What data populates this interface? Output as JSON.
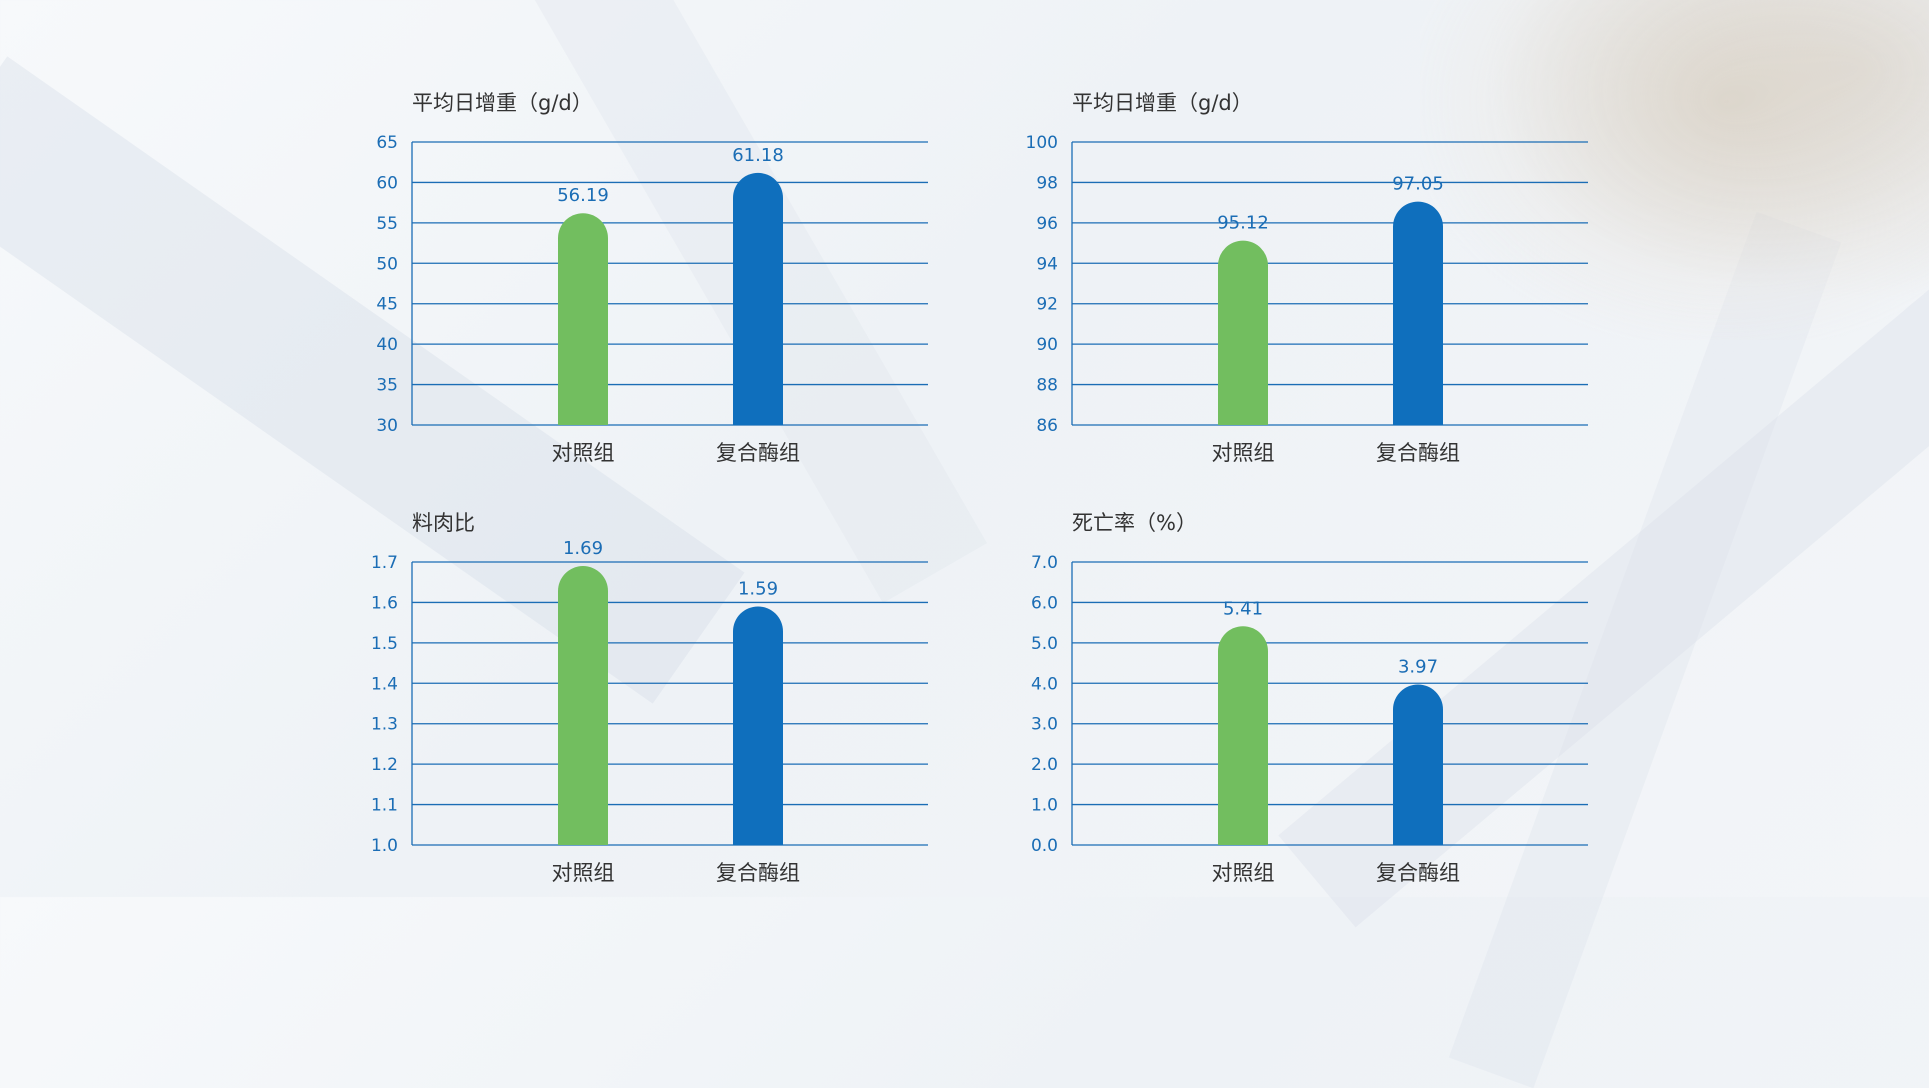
{
  "colors": {
    "control": "#72be5f",
    "enzyme": "#0f6fbd",
    "grid": "#1b6db5",
    "tick": "#1b6db5"
  },
  "chart_data": [
    {
      "type": "bar",
      "title": "平均日增重（g/d）",
      "categories": [
        "对照组",
        "复合酶组"
      ],
      "values": [
        56.19,
        61.18
      ],
      "value_labels": [
        "56.19",
        "61.18"
      ],
      "ylim": [
        30,
        65
      ],
      "yticks": [
        "30",
        "35",
        "40",
        "45",
        "50",
        "55",
        "60",
        "65"
      ],
      "grid": true
    },
    {
      "type": "bar",
      "title": "平均日增重（g/d）",
      "categories": [
        "对照组",
        "复合酶组"
      ],
      "values": [
        95.12,
        97.05
      ],
      "value_labels": [
        "95.12",
        "97.05"
      ],
      "ylim": [
        86,
        100
      ],
      "yticks": [
        "86",
        "88",
        "90",
        "92",
        "94",
        "96",
        "98",
        "100"
      ],
      "grid": true
    },
    {
      "type": "bar",
      "title": "料肉比",
      "categories": [
        "对照组",
        "复合酶组"
      ],
      "values": [
        1.69,
        1.59
      ],
      "value_labels": [
        "1.69",
        "1.59"
      ],
      "ylim": [
        1.0,
        1.7
      ],
      "yticks": [
        "1.0",
        "1.1",
        "1.2",
        "1.3",
        "1.4",
        "1.5",
        "1.6",
        "1.7"
      ],
      "grid": true
    },
    {
      "type": "bar",
      "title": "死亡率（%）",
      "categories": [
        "对照组",
        "复合酶组"
      ],
      "values": [
        5.41,
        3.97
      ],
      "value_labels": [
        "5.41",
        "3.97"
      ],
      "ylim": [
        0,
        7
      ],
      "yticks": [
        "0.0",
        "1.0",
        "2.0",
        "3.0",
        "4.0",
        "5.0",
        "6.0",
        "7.0"
      ],
      "grid": true
    }
  ]
}
